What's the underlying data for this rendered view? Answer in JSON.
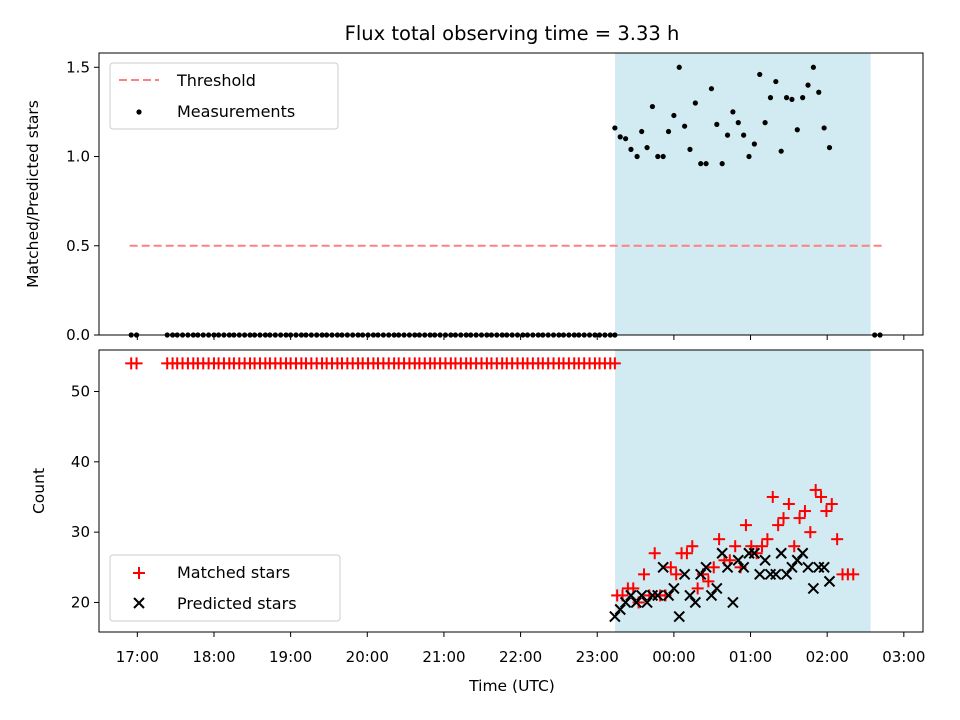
{
  "chart_data": {
    "title": "Flux total observing time = 3.33 h",
    "xlabel": "Time (UTC)",
    "x_unit": "hours since 00:00 UTC (negative = previous day)",
    "xlim": [
      -7.5,
      3.25
    ],
    "xticks": [
      {
        "value": -7,
        "label": "17:00"
      },
      {
        "value": -6,
        "label": "18:00"
      },
      {
        "value": -5,
        "label": "19:00"
      },
      {
        "value": -4,
        "label": "20:00"
      },
      {
        "value": -3,
        "label": "21:00"
      },
      {
        "value": -2,
        "label": "22:00"
      },
      {
        "value": -1,
        "label": "23:00"
      },
      {
        "value": 0,
        "label": "00:00"
      },
      {
        "value": 1,
        "label": "01:00"
      },
      {
        "value": 2,
        "label": "02:00"
      },
      {
        "value": 3,
        "label": "03:00"
      }
    ],
    "observing_window": {
      "start": -0.7667,
      "end": 2.5667,
      "color": "#add8e6"
    },
    "top_panel": {
      "type": "scatter",
      "ylabel": "Matched/Predicted stars",
      "ylim": [
        0,
        1.58
      ],
      "yticks": [
        {
          "value": 0.0,
          "label": "0.0"
        },
        {
          "value": 0.5,
          "label": "0.5"
        },
        {
          "value": 1.0,
          "label": "1.0"
        },
        {
          "value": 1.5,
          "label": "1.5"
        }
      ],
      "legend": {
        "position": "upper left",
        "threshold_label": "Threshold",
        "measurements_label": "Measurements"
      },
      "threshold": {
        "value": 0.5,
        "x_range": [
          -7.1,
          2.73
        ],
        "color": "#ff8080"
      },
      "zero_x": [
        -7.08,
        -7.01,
        -6.61,
        -6.54,
        -6.48,
        -6.41,
        -6.34,
        -6.27,
        -6.21,
        -6.14,
        -6.07,
        -6.0,
        -5.94,
        -5.87,
        -5.8,
        -5.74,
        -5.67,
        -5.6,
        -5.53,
        -5.47,
        -5.4,
        -5.33,
        -5.27,
        -5.2,
        -5.13,
        -5.06,
        -5.0,
        -4.93,
        -4.86,
        -4.8,
        -4.73,
        -4.66,
        -4.59,
        -4.53,
        -4.46,
        -4.39,
        -4.33,
        -4.26,
        -4.19,
        -4.12,
        -4.06,
        -3.99,
        -3.92,
        -3.86,
        -3.79,
        -3.72,
        -3.65,
        -3.59,
        -3.52,
        -3.45,
        -3.38,
        -3.32,
        -3.25,
        -3.18,
        -3.12,
        -3.05,
        -2.98,
        -2.91,
        -2.85,
        -2.78,
        -2.71,
        -2.65,
        -2.58,
        -2.51,
        -2.44,
        -2.38,
        -2.31,
        -2.24,
        -2.18,
        -2.11,
        -2.04,
        -1.97,
        -1.91,
        -1.84,
        -1.77,
        -1.71,
        -1.64,
        -1.57,
        -1.5,
        -1.44,
        -1.37,
        -1.3,
        -1.24,
        -1.17,
        -1.1,
        -1.03,
        -0.97,
        -0.9,
        -0.83,
        -0.77,
        2.62,
        2.69
      ],
      "ratio_points": [
        {
          "x": -0.77,
          "y": 1.16
        },
        {
          "x": -0.7,
          "y": 1.11
        },
        {
          "x": -0.63,
          "y": 1.1
        },
        {
          "x": -0.56,
          "y": 1.04
        },
        {
          "x": -0.48,
          "y": 1.0
        },
        {
          "x": -0.42,
          "y": 1.14
        },
        {
          "x": -0.35,
          "y": 1.05
        },
        {
          "x": -0.28,
          "y": 1.28
        },
        {
          "x": -0.21,
          "y": 1.0
        },
        {
          "x": -0.14,
          "y": 1.0
        },
        {
          "x": -0.07,
          "y": 1.14
        },
        {
          "x": 0.0,
          "y": 1.23
        },
        {
          "x": 0.07,
          "y": 1.5
        },
        {
          "x": 0.14,
          "y": 1.17
        },
        {
          "x": 0.21,
          "y": 1.04
        },
        {
          "x": 0.28,
          "y": 1.3
        },
        {
          "x": 0.35,
          "y": 0.96
        },
        {
          "x": 0.42,
          "y": 0.96
        },
        {
          "x": 0.49,
          "y": 1.38
        },
        {
          "x": 0.56,
          "y": 1.18
        },
        {
          "x": 0.63,
          "y": 0.96
        },
        {
          "x": 0.7,
          "y": 1.12
        },
        {
          "x": 0.77,
          "y": 1.25
        },
        {
          "x": 0.84,
          "y": 1.19
        },
        {
          "x": 0.91,
          "y": 1.12
        },
        {
          "x": 0.98,
          "y": 1.0
        },
        {
          "x": 1.05,
          "y": 1.07
        },
        {
          "x": 1.12,
          "y": 1.46
        },
        {
          "x": 1.19,
          "y": 1.19
        },
        {
          "x": 1.26,
          "y": 1.33
        },
        {
          "x": 1.33,
          "y": 1.42
        },
        {
          "x": 1.4,
          "y": 1.03
        },
        {
          "x": 1.47,
          "y": 1.33
        },
        {
          "x": 1.54,
          "y": 1.32
        },
        {
          "x": 1.61,
          "y": 1.15
        },
        {
          "x": 1.68,
          "y": 1.33
        },
        {
          "x": 1.75,
          "y": 1.4
        },
        {
          "x": 1.82,
          "y": 1.5
        },
        {
          "x": 1.89,
          "y": 1.36
        },
        {
          "x": 1.96,
          "y": 1.16
        },
        {
          "x": 2.03,
          "y": 1.05
        }
      ]
    },
    "bottom_panel": {
      "type": "scatter",
      "ylabel": "Count",
      "ylim": [
        15.8,
        55.9
      ],
      "yticks": [
        {
          "value": 20,
          "label": "20"
        },
        {
          "value": 30,
          "label": "30"
        },
        {
          "value": 40,
          "label": "40"
        },
        {
          "value": 50,
          "label": "50"
        }
      ],
      "legend": {
        "position": "lower left",
        "matched_label": "Matched stars",
        "predicted_label": "Predicted stars"
      },
      "matched_color": "#ff0000",
      "predicted_color": "#000000",
      "matched_flat": {
        "value": 54
      },
      "matched_points": [
        {
          "x": -0.74,
          "y": 21
        },
        {
          "x": -0.67,
          "y": 21
        },
        {
          "x": -0.6,
          "y": 22
        },
        {
          "x": -0.53,
          "y": 22
        },
        {
          "x": -0.46,
          "y": 20
        },
        {
          "x": -0.39,
          "y": 24
        },
        {
          "x": -0.32,
          "y": 21
        },
        {
          "x": -0.25,
          "y": 27
        },
        {
          "x": -0.18,
          "y": 21
        },
        {
          "x": -0.11,
          "y": 21
        },
        {
          "x": -0.04,
          "y": 25
        },
        {
          "x": 0.03,
          "y": 24
        },
        {
          "x": 0.1,
          "y": 27
        },
        {
          "x": 0.17,
          "y": 27
        },
        {
          "x": 0.24,
          "y": 28
        },
        {
          "x": 0.31,
          "y": 22
        },
        {
          "x": 0.38,
          "y": 24
        },
        {
          "x": 0.45,
          "y": 23
        },
        {
          "x": 0.52,
          "y": 25
        },
        {
          "x": 0.59,
          "y": 29
        },
        {
          "x": 0.66,
          "y": 26
        },
        {
          "x": 0.73,
          "y": 26
        },
        {
          "x": 0.8,
          "y": 28
        },
        {
          "x": 0.87,
          "y": 25
        },
        {
          "x": 0.94,
          "y": 31
        },
        {
          "x": 1.01,
          "y": 28
        },
        {
          "x": 1.08,
          "y": 27
        },
        {
          "x": 1.15,
          "y": 28
        },
        {
          "x": 1.22,
          "y": 29
        },
        {
          "x": 1.29,
          "y": 35
        },
        {
          "x": 1.36,
          "y": 31
        },
        {
          "x": 1.43,
          "y": 32
        },
        {
          "x": 1.5,
          "y": 34
        },
        {
          "x": 1.57,
          "y": 28
        },
        {
          "x": 1.64,
          "y": 32
        },
        {
          "x": 1.71,
          "y": 33
        },
        {
          "x": 1.78,
          "y": 30
        },
        {
          "x": 1.85,
          "y": 36
        },
        {
          "x": 1.92,
          "y": 35
        },
        {
          "x": 1.99,
          "y": 33
        },
        {
          "x": 2.06,
          "y": 34
        },
        {
          "x": 2.13,
          "y": 29
        },
        {
          "x": 2.2,
          "y": 24
        },
        {
          "x": 2.27,
          "y": 24
        },
        {
          "x": 2.34,
          "y": 24
        }
      ],
      "predicted_points": [
        {
          "x": -0.77,
          "y": 18
        },
        {
          "x": -0.7,
          "y": 19
        },
        {
          "x": -0.63,
          "y": 20
        },
        {
          "x": -0.56,
          "y": 21
        },
        {
          "x": -0.49,
          "y": 20
        },
        {
          "x": -0.42,
          "y": 21
        },
        {
          "x": -0.35,
          "y": 20
        },
        {
          "x": -0.28,
          "y": 21
        },
        {
          "x": -0.21,
          "y": 21
        },
        {
          "x": -0.14,
          "y": 25
        },
        {
          "x": -0.07,
          "y": 21
        },
        {
          "x": 0.0,
          "y": 22
        },
        {
          "x": 0.07,
          "y": 18
        },
        {
          "x": 0.14,
          "y": 24
        },
        {
          "x": 0.21,
          "y": 21
        },
        {
          "x": 0.28,
          "y": 20
        },
        {
          "x": 0.35,
          "y": 24
        },
        {
          "x": 0.42,
          "y": 25
        },
        {
          "x": 0.49,
          "y": 21
        },
        {
          "x": 0.56,
          "y": 22
        },
        {
          "x": 0.63,
          "y": 27
        },
        {
          "x": 0.7,
          "y": 25
        },
        {
          "x": 0.77,
          "y": 20
        },
        {
          "x": 0.84,
          "y": 26
        },
        {
          "x": 0.91,
          "y": 25
        },
        {
          "x": 0.98,
          "y": 27
        },
        {
          "x": 1.05,
          "y": 27
        },
        {
          "x": 1.12,
          "y": 24
        },
        {
          "x": 1.19,
          "y": 26
        },
        {
          "x": 1.26,
          "y": 24
        },
        {
          "x": 1.33,
          "y": 24
        },
        {
          "x": 1.4,
          "y": 27
        },
        {
          "x": 1.47,
          "y": 24
        },
        {
          "x": 1.54,
          "y": 25
        },
        {
          "x": 1.61,
          "y": 26
        },
        {
          "x": 1.68,
          "y": 27
        },
        {
          "x": 1.75,
          "y": 25
        },
        {
          "x": 1.82,
          "y": 22
        },
        {
          "x": 1.89,
          "y": 25
        },
        {
          "x": 1.96,
          "y": 25
        },
        {
          "x": 2.03,
          "y": 23
        }
      ]
    }
  }
}
